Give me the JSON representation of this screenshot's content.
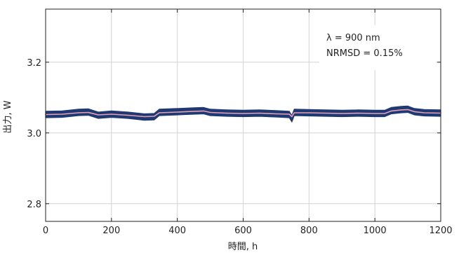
{
  "chart_data": {
    "type": "line",
    "title": "",
    "xlabel": "時間, h",
    "ylabel": "出力, W",
    "xlim": [
      0,
      1200
    ],
    "ylim": [
      2.75,
      3.35
    ],
    "grid": true,
    "x_ticks": [
      0,
      200,
      400,
      600,
      800,
      1000,
      1200
    ],
    "x_tick_labels": [
      "0",
      "200",
      "400",
      "600",
      "800",
      "1000",
      "1200"
    ],
    "y_ticks": [
      2.8,
      3.0,
      3.2
    ],
    "y_tick_labels": [
      "2.8",
      "3.0",
      "3.2"
    ],
    "annotations": [
      "λ = 900 nm",
      "NRMSD = 0.15%"
    ],
    "series": [
      {
        "color": "#1f3a73",
        "style": "raw-band",
        "x": [
          0,
          50,
          100,
          130,
          160,
          200,
          250,
          300,
          330,
          345,
          400,
          450,
          480,
          500,
          550,
          600,
          650,
          700,
          740,
          748,
          755,
          800,
          850,
          900,
          950,
          1000,
          1030,
          1050,
          1080,
          1100,
          1120,
          1150,
          1200
        ],
        "y": [
          3.052,
          3.053,
          3.058,
          3.059,
          3.05,
          3.053,
          3.05,
          3.045,
          3.046,
          3.058,
          3.06,
          3.062,
          3.063,
          3.058,
          3.056,
          3.055,
          3.056,
          3.054,
          3.052,
          3.04,
          3.058,
          3.057,
          3.056,
          3.055,
          3.056,
          3.055,
          3.055,
          3.063,
          3.066,
          3.067,
          3.06,
          3.057,
          3.056
        ],
        "band": 0.009
      },
      {
        "color": "#e8a0b4",
        "style": "smoothed",
        "x": [
          0,
          50,
          100,
          130,
          160,
          200,
          250,
          300,
          330,
          345,
          400,
          450,
          480,
          500,
          550,
          600,
          650,
          700,
          740,
          748,
          755,
          800,
          850,
          900,
          950,
          1000,
          1030,
          1050,
          1080,
          1100,
          1120,
          1150,
          1200
        ],
        "y": [
          3.052,
          3.053,
          3.057,
          3.058,
          3.051,
          3.053,
          3.05,
          3.046,
          3.047,
          3.057,
          3.059,
          3.061,
          3.062,
          3.058,
          3.056,
          3.055,
          3.056,
          3.054,
          3.053,
          3.046,
          3.057,
          3.057,
          3.056,
          3.055,
          3.056,
          3.055,
          3.055,
          3.062,
          3.065,
          3.066,
          3.06,
          3.057,
          3.056
        ]
      }
    ]
  }
}
